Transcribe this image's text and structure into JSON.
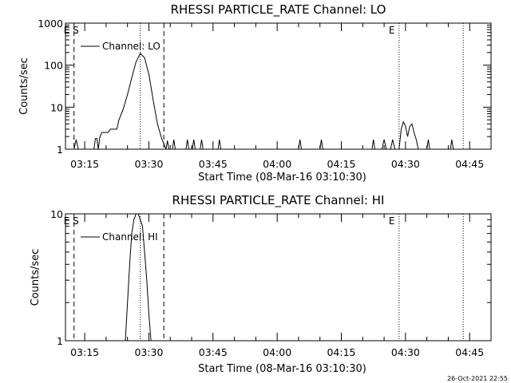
{
  "chart_data": [
    {
      "type": "line",
      "title": "RHESSI PARTICLE_RATE Channel: LO",
      "xlabel": "Start Time (08-Mar-16 03:10:30)",
      "ylabel": "Counts/sec",
      "yscale": "log",
      "ylim": [
        1,
        1000
      ],
      "yticks": [
        "1",
        "10",
        "100",
        "1000"
      ],
      "xlim": [
        "03:10:30",
        "04:50:00"
      ],
      "xticks": [
        "03:15",
        "03:30",
        "03:45",
        "04:00",
        "04:15",
        "04:30",
        "04:45"
      ],
      "legend": {
        "label": "Channel: LO",
        "placement": "top-left"
      },
      "markers": [
        {
          "time": "03:12:30",
          "style": "dashed",
          "label": "E S"
        },
        {
          "time": "03:28:00",
          "style": "dotted",
          "label": ""
        },
        {
          "time": "03:33:30",
          "style": "dashed",
          "label": ""
        },
        {
          "time": "04:28:30",
          "style": "dotted",
          "label": "E"
        },
        {
          "time": "04:43:30",
          "style": "dotted",
          "label": ""
        }
      ],
      "series": [
        {
          "name": "Channel: LO",
          "values": [
            [
              "03:12:30",
              1
            ],
            [
              "03:13:00",
              1.7
            ],
            [
              "03:13:30",
              1
            ],
            [
              "03:17:10",
              1
            ],
            [
              "03:17:30",
              1.8
            ],
            [
              "03:17:50",
              1.8
            ],
            [
              "03:18:10",
              1
            ],
            [
              "03:18:30",
              1.9
            ],
            [
              "03:19:00",
              2.5
            ],
            [
              "03:20:30",
              2.5
            ],
            [
              "03:21:00",
              3
            ],
            [
              "03:22:30",
              3
            ],
            [
              "03:23:00",
              5
            ],
            [
              "03:24:00",
              9
            ],
            [
              "03:25:00",
              20
            ],
            [
              "03:26:00",
              50
            ],
            [
              "03:27:00",
              120
            ],
            [
              "03:28:00",
              190
            ],
            [
              "03:29:00",
              150
            ],
            [
              "03:30:00",
              60
            ],
            [
              "03:31:00",
              15
            ],
            [
              "03:32:00",
              4
            ],
            [
              "03:33:00",
              1.8
            ],
            [
              "03:34:00",
              1
            ],
            [
              "03:34:20",
              1.6
            ],
            [
              "03:34:40",
              1
            ],
            [
              "03:35:30",
              1
            ],
            [
              "03:35:50",
              1.7
            ],
            [
              "03:36:10",
              1
            ],
            [
              "03:38:40",
              1
            ],
            [
              "03:39:00",
              1.7
            ],
            [
              "03:39:20",
              1
            ],
            [
              "03:40:10",
              1
            ],
            [
              "03:40:30",
              1.7
            ],
            [
              "03:40:50",
              1
            ],
            [
              "03:42:00",
              1
            ],
            [
              "03:42:20",
              1.7
            ],
            [
              "03:42:40",
              1
            ],
            [
              "03:46:10",
              1
            ],
            [
              "03:46:30",
              1.7
            ],
            [
              "03:46:50",
              1
            ],
            [
              "04:05:00",
              1
            ],
            [
              "04:05:20",
              1.7
            ],
            [
              "04:05:40",
              1
            ],
            [
              "04:10:00",
              1
            ],
            [
              "04:10:20",
              1.7
            ],
            [
              "04:10:40",
              1
            ],
            [
              "04:22:10",
              1
            ],
            [
              "04:22:30",
              1.7
            ],
            [
              "04:22:50",
              1
            ],
            [
              "04:24:30",
              1
            ],
            [
              "04:25:00",
              1.7
            ],
            [
              "04:25:30",
              1
            ],
            [
              "04:26:30",
              1
            ],
            [
              "04:27:00",
              1.7
            ],
            [
              "04:27:30",
              1
            ],
            [
              "04:28:30",
              1
            ],
            [
              "04:29:00",
              3
            ],
            [
              "04:29:30",
              4.5
            ],
            [
              "04:30:00",
              3.5
            ],
            [
              "04:30:30",
              2
            ],
            [
              "04:31:00",
              3.5
            ],
            [
              "04:31:30",
              4
            ],
            [
              "04:32:00",
              2.5
            ],
            [
              "04:32:30",
              1.7
            ],
            [
              "04:33:00",
              1
            ],
            [
              "04:35:00",
              1
            ],
            [
              "04:35:20",
              1.7
            ],
            [
              "04:35:40",
              1
            ],
            [
              "04:40:30",
              1
            ],
            [
              "04:40:50",
              1.7
            ],
            [
              "04:41:10",
              1
            ]
          ]
        }
      ]
    },
    {
      "type": "line",
      "title": "RHESSI PARTICLE_RATE Channel: HI",
      "xlabel": "Start Time (08-Mar-16 03:10:30)",
      "ylabel": "Counts/sec",
      "yscale": "log",
      "ylim": [
        1,
        10
      ],
      "yticks": [
        "1",
        "10"
      ],
      "xlim": [
        "03:10:30",
        "04:50:00"
      ],
      "xticks": [
        "03:15",
        "03:30",
        "03:45",
        "04:00",
        "04:15",
        "04:30",
        "04:45"
      ],
      "legend": {
        "label": "Channel: HI",
        "placement": "top-left"
      },
      "markers": [
        {
          "time": "03:12:30",
          "style": "dashed",
          "label": "E S"
        },
        {
          "time": "03:28:00",
          "style": "dotted",
          "label": ""
        },
        {
          "time": "03:33:30",
          "style": "dashed",
          "label": ""
        },
        {
          "time": "04:28:30",
          "style": "dotted",
          "label": "E"
        },
        {
          "time": "04:43:30",
          "style": "dotted",
          "label": ""
        }
      ],
      "series": [
        {
          "name": "Channel: HI",
          "values": [
            [
              "03:24:30",
              1
            ],
            [
              "03:25:00",
              2
            ],
            [
              "03:25:30",
              4
            ],
            [
              "03:26:00",
              7
            ],
            [
              "03:26:30",
              9
            ],
            [
              "03:27:00",
              10
            ],
            [
              "03:27:30",
              10
            ],
            [
              "03:28:00",
              9
            ],
            [
              "03:28:30",
              8
            ],
            [
              "03:29:00",
              5
            ],
            [
              "03:29:30",
              3
            ],
            [
              "03:30:00",
              1.6
            ],
            [
              "03:30:30",
              1
            ]
          ]
        }
      ]
    }
  ],
  "timestamp": "26-Oct-2021 22:55"
}
